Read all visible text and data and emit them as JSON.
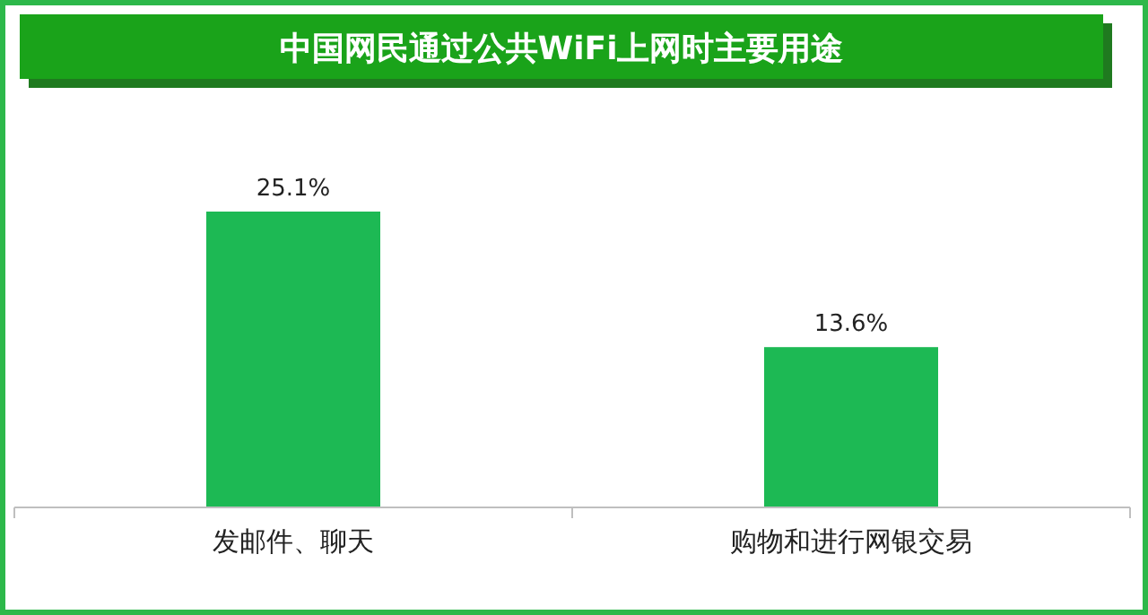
{
  "chart_data": {
    "type": "bar",
    "title": "中国网民通过公共WiFi上网时主要用途",
    "categories": [
      "发邮件、聊天",
      "购物和进行网银交易"
    ],
    "values": [
      25.1,
      13.6
    ],
    "color": "#1db954",
    "value_labels": [
      "25.1%",
      "13.6%"
    ]
  }
}
